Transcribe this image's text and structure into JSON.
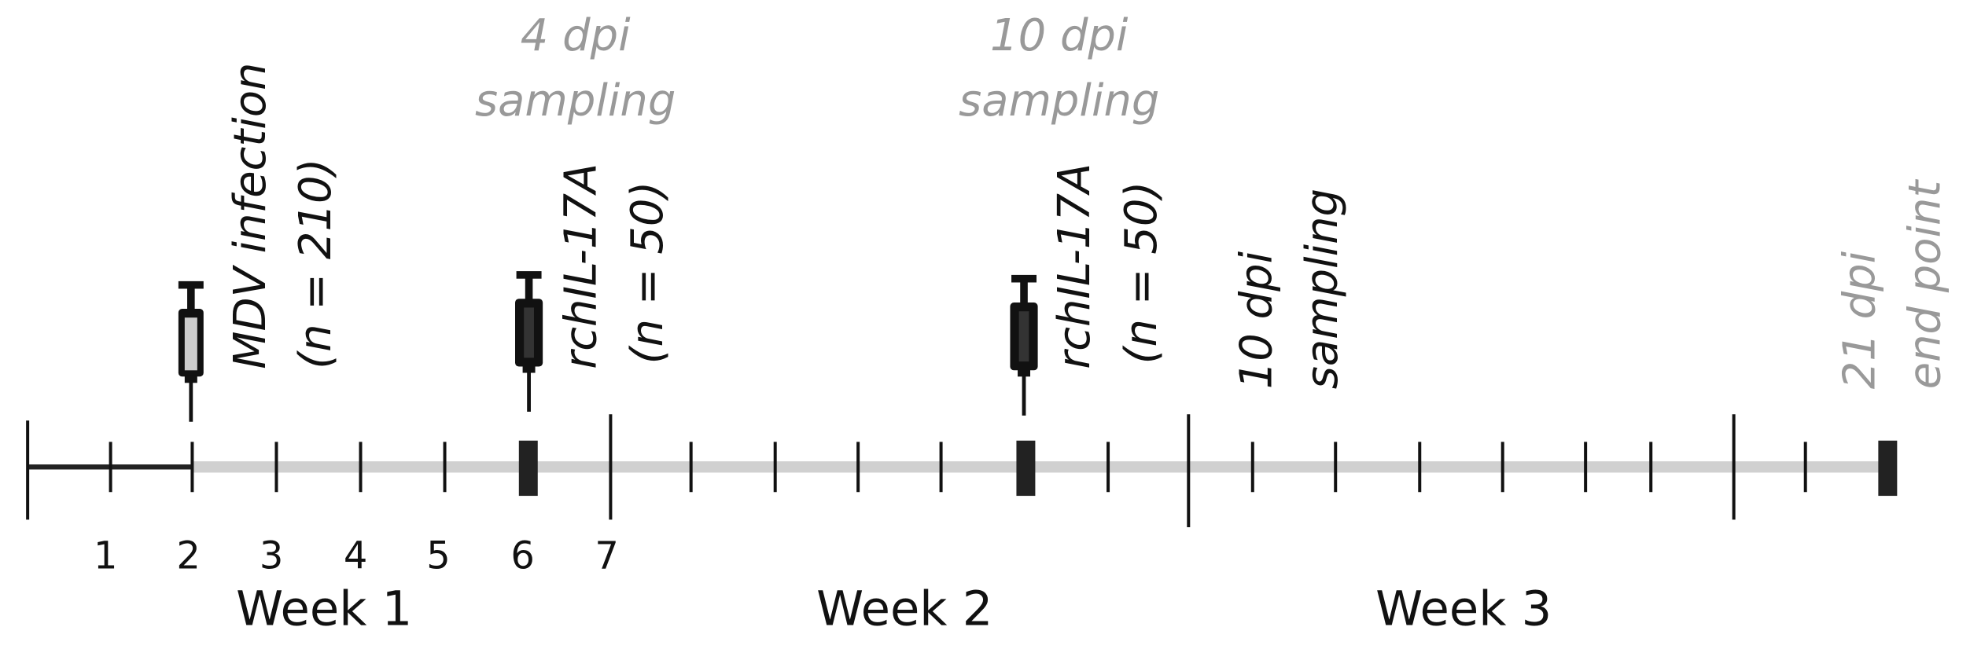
{
  "annotations": {
    "infection": {
      "label": "MDV infection",
      "n": "(n = 210)"
    },
    "sampling_4dpi": {
      "day": "4 dpi",
      "label": "sampling"
    },
    "treatment_1": {
      "label": "rchIL-17A",
      "n": "(n = 50)"
    },
    "sampling_10dpi_top": {
      "day": "10 dpi",
      "label": "sampling"
    },
    "treatment_2": {
      "label": "rchIL-17A",
      "n": "(n = 50)"
    },
    "sampling_10dpi": {
      "day": "10 dpi",
      "label": "sampling"
    },
    "end": {
      "day": "21 dpi",
      "label": "end point"
    }
  },
  "days": [
    "1",
    "2",
    "3",
    "4",
    "5",
    "6",
    "7"
  ],
  "weeks": [
    "Week 1",
    "Week 2",
    "Week 3"
  ]
}
